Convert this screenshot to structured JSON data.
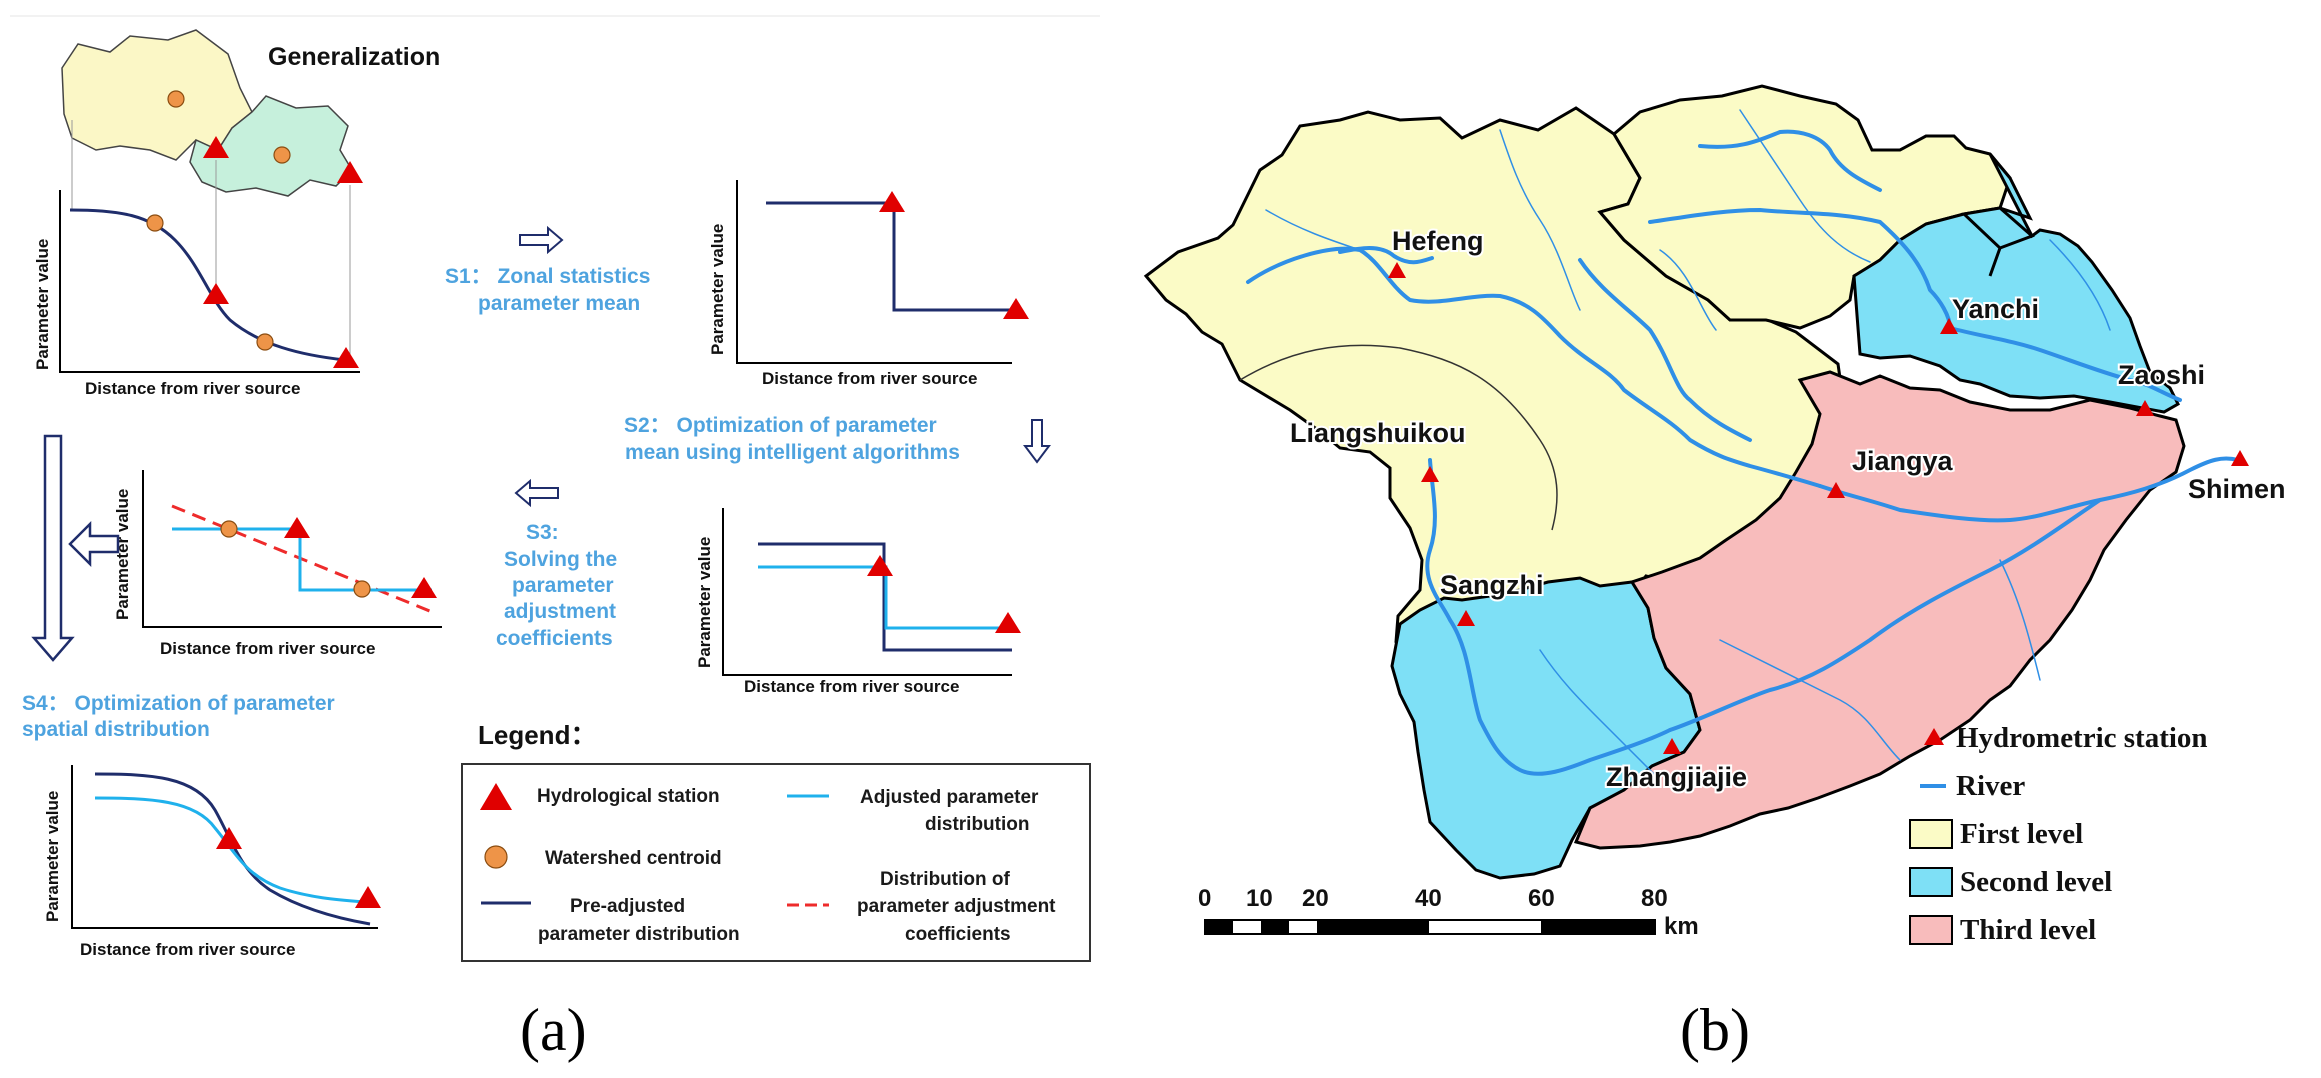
{
  "panel_a": {
    "generalization_title": "Generalization",
    "axis_y": "Parameter value",
    "axis_x": "Distance from river source",
    "steps": {
      "s1_line1": "S1： Zonal statistics",
      "s1_line2": "parameter mean",
      "s2_line1": "S2： Optimization of parameter",
      "s2_line2": "mean using intelligent algorithms",
      "s3_line1": "S3:",
      "s3_line2": "Solving the",
      "s3_line3": "parameter",
      "s3_line4": "adjustment",
      "s3_line5": "coefficients",
      "s4_line1": "S4： Optimization of parameter",
      "s4_line2": "spatial distribution"
    },
    "legend": {
      "title": "Legend：",
      "hydrological_station": "Hydrological station",
      "watershed_centroid": "Watershed centroid",
      "pre_adjusted_line1": "Pre-adjusted",
      "pre_adjusted_line2": "parameter distribution",
      "adjusted_line1": "Adjusted parameter",
      "adjusted_line2": "distribution",
      "coeff_line1": "Distribution of",
      "coeff_line2": "parameter adjustment",
      "coeff_line3": "coefficients"
    },
    "label": "(a)"
  },
  "panel_b": {
    "stations": {
      "hefeng": "Hefeng",
      "yanchi": "Yanchi",
      "zaoshi": "Zaoshi",
      "liangshuikou": "Liangshuikou",
      "jiangya": "Jiangya",
      "shimen": "Shimen",
      "sangzhi": "Sangzhi",
      "zhangjiajie": "Zhangjiajie"
    },
    "legend": {
      "hydrometric_station": "Hydrometric station",
      "river": "River",
      "first_level": "First level",
      "second_level": "Second level",
      "third_level": "Third level"
    },
    "scale_bar": {
      "t0": "0",
      "t10": "10",
      "t20": "20",
      "t40": "40",
      "t60": "60",
      "t80": "80",
      "unit": "km"
    },
    "label": "(b)"
  },
  "colors": {
    "first_level": "#fbfbc6",
    "second_level": "#7ee0f6",
    "third_level": "#f8bcbc",
    "river": "#2f8fe6",
    "station": "#e00000",
    "centroid": "#ee9448",
    "pre_adjusted": "#1f2d6b",
    "adjusted": "#1fb1ec",
    "coeff": "#ee2b2b",
    "step_text": "#4ea3df"
  }
}
